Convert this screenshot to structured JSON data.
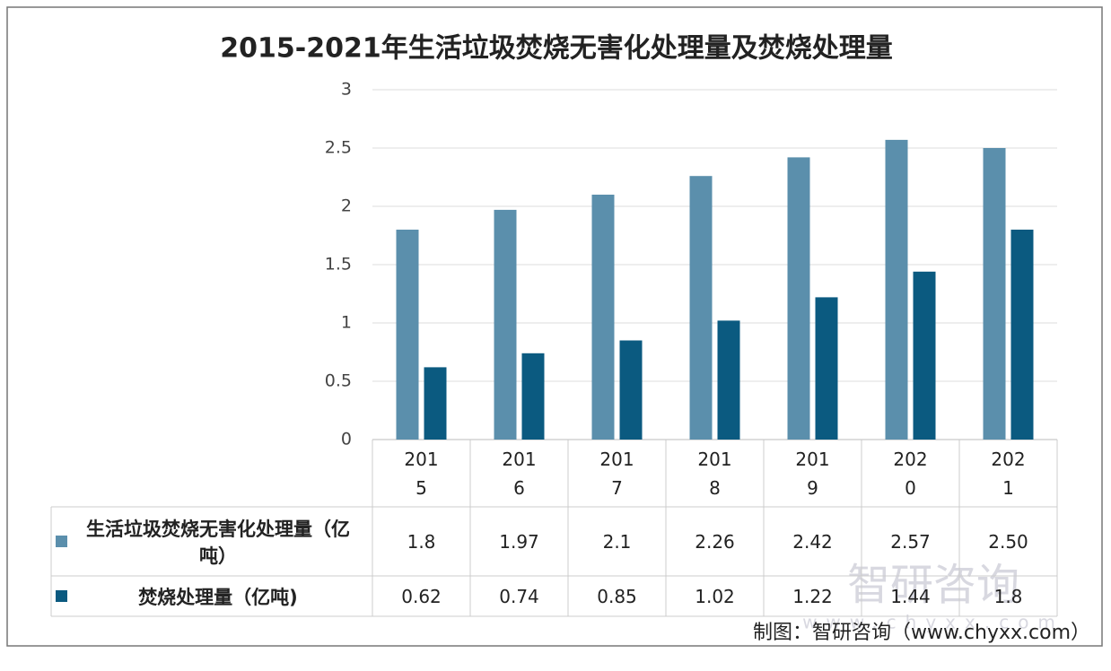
{
  "chart_data": {
    "type": "bar",
    "title": "2015-2021年生活垃圾焚烧无害化处理量及焚烧处理量",
    "categories": [
      "2015",
      "2016",
      "2017",
      "2018",
      "2019",
      "2020",
      "2021"
    ],
    "series": [
      {
        "name": "生活垃圾焚烧无害化处理量（亿吨）",
        "color": "#5b8fac",
        "values": [
          1.8,
          1.97,
          2.1,
          2.26,
          2.42,
          2.57,
          2.5
        ],
        "value_labels": [
          "1.8",
          "1.97",
          "2.1",
          "2.26",
          "2.42",
          "2.57",
          "2.50"
        ]
      },
      {
        "name": "焚烧处理量（亿吨)",
        "color": "#0b5a80",
        "values": [
          0.62,
          0.74,
          0.85,
          1.02,
          1.22,
          1.44,
          1.8
        ]
      }
    ],
    "ylim": [
      0,
      3
    ],
    "yticks": [
      0,
      0.5,
      1,
      1.5,
      2,
      2.5,
      3
    ],
    "grid": true,
    "source": "制图：智研咨询（www.chyxx.com）",
    "watermark": "智研咨询",
    "watermark_url": "www.chyxx.com"
  }
}
